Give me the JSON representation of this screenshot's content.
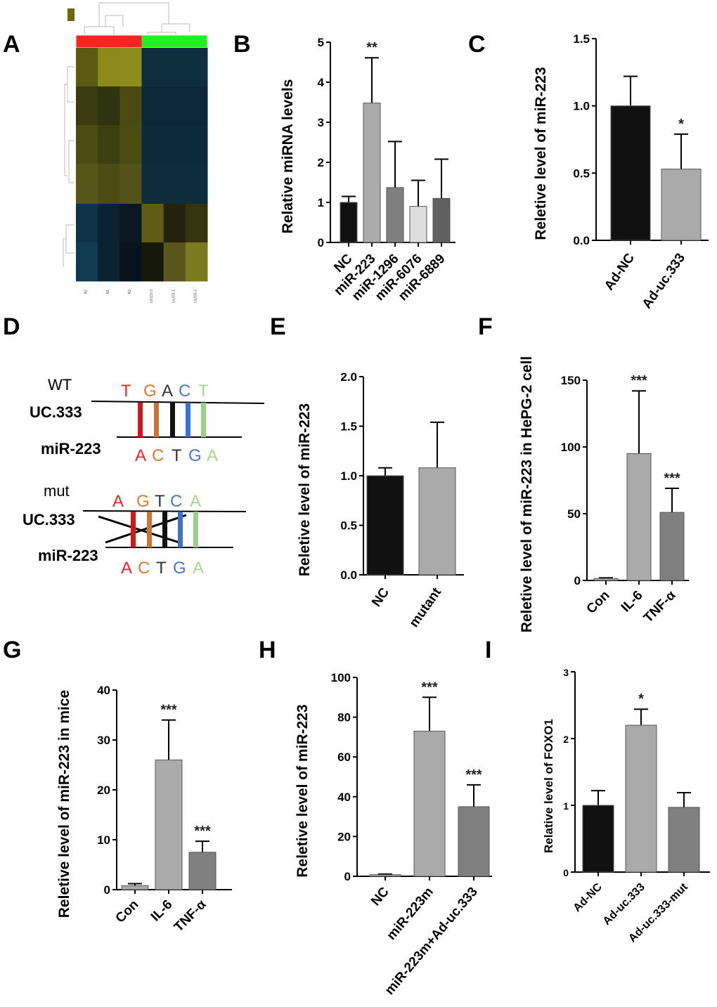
{
  "panel_labels": [
    "A",
    "B",
    "C",
    "D",
    "E",
    "F",
    "G",
    "H",
    "I"
  ],
  "heatmap": {
    "columns": [
      "N2",
      "N1",
      "N3",
      "Uc333-3",
      "Uc333-1",
      "Uc333-2"
    ],
    "group_colors": [
      "#ff2222",
      "#ff2222",
      "#ff2222",
      "#22ee22",
      "#22ee22",
      "#22ee22"
    ],
    "cells": [
      [
        "#5a5a12",
        "#8c8a1a",
        "#8e8c1c",
        "#0d2e3c",
        "#0d2e3c",
        "#0d2e3c"
      ],
      [
        "#3a3c10",
        "#2e3410",
        "#4a4a12",
        "#0c2838",
        "#0c2838",
        "#0c2838"
      ],
      [
        "#4a4c12",
        "#3c4010",
        "#4a4c12",
        "#0c2a3a",
        "#0c2a3a",
        "#0c2a3a"
      ],
      [
        "#56561a",
        "#4a4c14",
        "#52521a",
        "#0d2c3c",
        "#0d2c3c",
        "#0d2c3c"
      ],
      [
        "#0e3346",
        "#0a2233",
        "#091823",
        "#5e5c16",
        "#23220c",
        "#36340e"
      ],
      [
        "#0f3a50",
        "#0a2232",
        "#07121c",
        "#16180a",
        "#58561a",
        "#7c7a1e"
      ]
    ],
    "legend_color": "#6b6a10"
  },
  "motif": {
    "wt_label": "WT",
    "mut_label": "mut",
    "uc_label": "UC.333",
    "mir_label": "miR-223",
    "wt_top": [
      "T",
      "G",
      "A",
      "C",
      "T"
    ],
    "mut_top": [
      "A",
      "G",
      "T",
      "C",
      "A"
    ],
    "bottom": [
      "A",
      "C",
      "T",
      "G",
      "A"
    ],
    "wt_top_colors": [
      "#e8262a",
      "#e07a30",
      "#333333",
      "#4a78c8",
      "#a8d890"
    ],
    "mut_top_colors": [
      "#e8262a",
      "#e07a30",
      "#333333",
      "#4a78c8",
      "#a8d890"
    ],
    "bottom_colors": [
      "#e8262a",
      "#e07a30",
      "#333333",
      "#4a78c8",
      "#a8d890"
    ],
    "bar_colors": [
      "#c41e1e",
      "#d87028",
      "#111111",
      "#3a72d8",
      "#98d088"
    ]
  },
  "chart_data": [
    {
      "panel": "B",
      "type": "bar",
      "ylabel": "Relative miRNA levels",
      "ylim": [
        0,
        5
      ],
      "yticks": [
        "0",
        "1",
        "2",
        "3",
        "4",
        "5"
      ],
      "categories": [
        "NC",
        "miR-223",
        "miR-1296",
        "miR-6076",
        "miR-6889"
      ],
      "values": [
        1.0,
        3.48,
        1.37,
        0.9,
        1.1
      ],
      "errors": [
        0.15,
        1.13,
        1.15,
        0.65,
        0.98
      ],
      "significance": [
        "",
        "**",
        "",
        "",
        ""
      ],
      "colors": [
        "#111111",
        "#aaaaaa",
        "#7f7f7f",
        "#dddddd",
        "#606060"
      ]
    },
    {
      "panel": "C",
      "type": "bar",
      "ylabel": "Reletive level of  miR-223",
      "ylim": [
        0,
        1.5
      ],
      "yticks": [
        "0.0",
        "0.5",
        "1.0",
        "1.5"
      ],
      "categories": [
        "Ad-NC",
        "Ad-uc.333"
      ],
      "values": [
        1.0,
        0.53
      ],
      "errors": [
        0.22,
        0.26
      ],
      "significance": [
        "",
        "*"
      ],
      "colors": [
        "#111111",
        "#aaaaaa"
      ]
    },
    {
      "panel": "E",
      "type": "bar",
      "ylabel": "Reletive level of  miR-223",
      "ylim": [
        0,
        2.0
      ],
      "yticks": [
        "0.0",
        "0.5",
        "1.0",
        "1.5",
        "2.0"
      ],
      "categories": [
        "NC",
        "mutant"
      ],
      "values": [
        1.0,
        1.08
      ],
      "errors": [
        0.08,
        0.46
      ],
      "significance": [
        "",
        ""
      ],
      "colors": [
        "#111111",
        "#aaaaaa"
      ]
    },
    {
      "panel": "F",
      "type": "bar",
      "ylabel": "Reletive level of  miR-223 in HePG-2 cell",
      "ylim": [
        0,
        150
      ],
      "yticks": [
        "0",
        "50",
        "100",
        "150"
      ],
      "categories": [
        "Con",
        "IL-6",
        "TNF-α"
      ],
      "values": [
        1.5,
        95,
        51
      ],
      "errors": [
        0.5,
        47,
        18
      ],
      "significance": [
        "",
        "***",
        "***"
      ],
      "colors": [
        "#aaaaaa",
        "#aaaaaa",
        "#808080"
      ]
    },
    {
      "panel": "G",
      "type": "bar",
      "ylabel": "Reletive level of  miR-223 in mice",
      "ylim": [
        0,
        40
      ],
      "yticks": [
        "0",
        "10",
        "20",
        "30",
        "40"
      ],
      "categories": [
        "Con",
        "IL-6",
        "TNF-α"
      ],
      "values": [
        0.8,
        26,
        7.5
      ],
      "errors": [
        0.4,
        8,
        2.2
      ],
      "significance": [
        "",
        "***",
        "***"
      ],
      "colors": [
        "#aaaaaa",
        "#aaaaaa",
        "#808080"
      ]
    },
    {
      "panel": "H",
      "type": "bar",
      "ylabel": "Reletive level of  miR-223",
      "ylim": [
        0,
        100
      ],
      "yticks": [
        "0",
        "20",
        "40",
        "60",
        "80",
        "100"
      ],
      "categories": [
        "NC",
        "miR-223m",
        "miR-223m+Ad-uc.333"
      ],
      "values": [
        0.8,
        73,
        35
      ],
      "errors": [
        0.3,
        17,
        11
      ],
      "significance": [
        "",
        "***",
        "***"
      ],
      "colors": [
        "#aaaaaa",
        "#aaaaaa",
        "#808080"
      ]
    },
    {
      "panel": "I",
      "type": "bar",
      "ylabel": "Relative level of FOXO1",
      "ylim": [
        0,
        3
      ],
      "yticks": [
        "0",
        "1",
        "2",
        "3"
      ],
      "categories": [
        "Ad-NC",
        "Ad-uc.333",
        "Ad-uc.333-mut"
      ],
      "values": [
        1.0,
        2.2,
        0.97
      ],
      "errors": [
        0.22,
        0.24,
        0.22
      ],
      "significance": [
        "",
        "*",
        ""
      ],
      "colors": [
        "#111111",
        "#aaaaaa",
        "#808080"
      ]
    }
  ]
}
